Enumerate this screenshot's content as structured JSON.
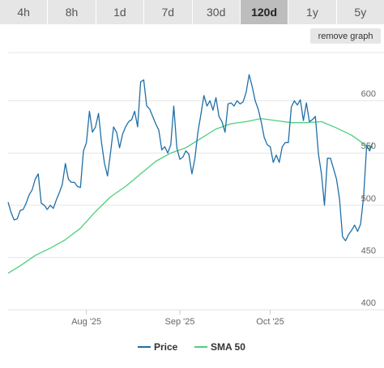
{
  "range_tabs": [
    {
      "label": "4h",
      "active": false
    },
    {
      "label": "8h",
      "active": false
    },
    {
      "label": "1d",
      "active": false
    },
    {
      "label": "7d",
      "active": false
    },
    {
      "label": "30d",
      "active": false
    },
    {
      "label": "120d",
      "active": true
    },
    {
      "label": "1y",
      "active": false
    },
    {
      "label": "5y",
      "active": false
    }
  ],
  "remove_graph_label": "remove graph",
  "colors": {
    "price": "#1f6fa8",
    "sma": "#4cd07d",
    "grid": "#e6e6e6",
    "tab_bg": "#e6e6e6",
    "tab_active_bg": "#bdbdbd"
  },
  "chart_data": {
    "type": "line",
    "x_start": "2025-07-06",
    "x_end": "2025-11-01",
    "xticks": [
      {
        "date": "2025-08-01",
        "label": "Aug '25"
      },
      {
        "date": "2025-09-01",
        "label": "Sep '25"
      },
      {
        "date": "2025-10-01",
        "label": "Oct '25"
      }
    ],
    "ylim": [
      400,
      650
    ],
    "yticks": [
      400,
      450,
      500,
      550,
      600
    ],
    "grid": true,
    "legend_position": "bottom-center",
    "series": [
      {
        "name": "Price",
        "color": "#1f6fa8",
        "points": [
          [
            "2025-07-06",
            503
          ],
          [
            "2025-07-07",
            493
          ],
          [
            "2025-07-08",
            486
          ],
          [
            "2025-07-09",
            487
          ],
          [
            "2025-07-10",
            495
          ],
          [
            "2025-07-11",
            496
          ],
          [
            "2025-07-12",
            502
          ],
          [
            "2025-07-13",
            510
          ],
          [
            "2025-07-14",
            515
          ],
          [
            "2025-07-15",
            525
          ],
          [
            "2025-07-16",
            530
          ],
          [
            "2025-07-17",
            502
          ],
          [
            "2025-07-18",
            500
          ],
          [
            "2025-07-19",
            496
          ],
          [
            "2025-07-20",
            500
          ],
          [
            "2025-07-21",
            497
          ],
          [
            "2025-07-22",
            505
          ],
          [
            "2025-07-23",
            512
          ],
          [
            "2025-07-24",
            520
          ],
          [
            "2025-07-25",
            540
          ],
          [
            "2025-07-26",
            525
          ],
          [
            "2025-07-27",
            522
          ],
          [
            "2025-07-28",
            522
          ],
          [
            "2025-07-29",
            518
          ],
          [
            "2025-07-30",
            517
          ],
          [
            "2025-07-31",
            552
          ],
          [
            "2025-08-01",
            560
          ],
          [
            "2025-08-02",
            590
          ],
          [
            "2025-08-03",
            570
          ],
          [
            "2025-08-04",
            575
          ],
          [
            "2025-08-05",
            588
          ],
          [
            "2025-08-06",
            560
          ],
          [
            "2025-08-07",
            540
          ],
          [
            "2025-08-08",
            528
          ],
          [
            "2025-08-09",
            550
          ],
          [
            "2025-08-10",
            575
          ],
          [
            "2025-08-11",
            570
          ],
          [
            "2025-08-12",
            555
          ],
          [
            "2025-08-13",
            568
          ],
          [
            "2025-08-14",
            575
          ],
          [
            "2025-08-15",
            580
          ],
          [
            "2025-08-16",
            582
          ],
          [
            "2025-08-17",
            590
          ],
          [
            "2025-08-18",
            575
          ],
          [
            "2025-08-19",
            618
          ],
          [
            "2025-08-20",
            620
          ],
          [
            "2025-08-21",
            595
          ],
          [
            "2025-08-22",
            592
          ],
          [
            "2025-08-23",
            585
          ],
          [
            "2025-08-24",
            578
          ],
          [
            "2025-08-25",
            572
          ],
          [
            "2025-08-26",
            553
          ],
          [
            "2025-08-27",
            556
          ],
          [
            "2025-08-28",
            550
          ],
          [
            "2025-08-29",
            558
          ],
          [
            "2025-08-30",
            595
          ],
          [
            "2025-08-31",
            555
          ],
          [
            "2025-09-01",
            544
          ],
          [
            "2025-09-02",
            546
          ],
          [
            "2025-09-03",
            552
          ],
          [
            "2025-09-04",
            549
          ],
          [
            "2025-09-05",
            530
          ],
          [
            "2025-09-06",
            545
          ],
          [
            "2025-09-07",
            570
          ],
          [
            "2025-09-08",
            587
          ],
          [
            "2025-09-09",
            605
          ],
          [
            "2025-09-10",
            595
          ],
          [
            "2025-09-11",
            600
          ],
          [
            "2025-09-12",
            591
          ],
          [
            "2025-09-13",
            603
          ],
          [
            "2025-09-14",
            585
          ],
          [
            "2025-09-15",
            580
          ],
          [
            "2025-09-16",
            570
          ],
          [
            "2025-09-17",
            597
          ],
          [
            "2025-09-18",
            598
          ],
          [
            "2025-09-19",
            595
          ],
          [
            "2025-09-20",
            600
          ],
          [
            "2025-09-21",
            597
          ],
          [
            "2025-09-22",
            599
          ],
          [
            "2025-09-23",
            608
          ],
          [
            "2025-09-24",
            625
          ],
          [
            "2025-09-25",
            614
          ],
          [
            "2025-09-26",
            600
          ],
          [
            "2025-09-27",
            592
          ],
          [
            "2025-09-28",
            580
          ],
          [
            "2025-09-29",
            565
          ],
          [
            "2025-09-30",
            558
          ],
          [
            "2025-10-01",
            556
          ],
          [
            "2025-10-02",
            541
          ],
          [
            "2025-10-03",
            548
          ],
          [
            "2025-10-04",
            541
          ],
          [
            "2025-10-05",
            556
          ],
          [
            "2025-10-06",
            560
          ],
          [
            "2025-10-07",
            560
          ],
          [
            "2025-10-08",
            594
          ],
          [
            "2025-10-09",
            600
          ],
          [
            "2025-10-10",
            596
          ],
          [
            "2025-10-11",
            601
          ],
          [
            "2025-10-12",
            581
          ],
          [
            "2025-10-13",
            598
          ],
          [
            "2025-10-14",
            580
          ],
          [
            "2025-10-15",
            582
          ],
          [
            "2025-10-16",
            585
          ],
          [
            "2025-10-17",
            549
          ],
          [
            "2025-10-18",
            530
          ],
          [
            "2025-10-19",
            500
          ],
          [
            "2025-10-20",
            545
          ],
          [
            "2025-10-21",
            545
          ],
          [
            "2025-10-22",
            535
          ],
          [
            "2025-10-23",
            525
          ],
          [
            "2025-10-24",
            506
          ],
          [
            "2025-10-25",
            470
          ],
          [
            "2025-10-26",
            466
          ],
          [
            "2025-10-27",
            472
          ],
          [
            "2025-10-28",
            476
          ],
          [
            "2025-10-29",
            481
          ],
          [
            "2025-10-30",
            475
          ],
          [
            "2025-10-31",
            482
          ],
          [
            "2025-11-01",
            508
          ],
          [
            "2025-11-02",
            557
          ],
          [
            "2025-11-03",
            552
          ],
          [
            "2025-11-04",
            560
          ]
        ]
      },
      {
        "name": "SMA 50",
        "color": "#4cd07d",
        "points": [
          [
            "2025-07-06",
            435
          ],
          [
            "2025-07-10",
            442
          ],
          [
            "2025-07-15",
            452
          ],
          [
            "2025-07-20",
            459
          ],
          [
            "2025-07-25",
            467
          ],
          [
            "2025-07-30",
            478
          ],
          [
            "2025-08-04",
            494
          ],
          [
            "2025-08-09",
            508
          ],
          [
            "2025-08-14",
            518
          ],
          [
            "2025-08-19",
            530
          ],
          [
            "2025-08-24",
            542
          ],
          [
            "2025-08-29",
            550
          ],
          [
            "2025-09-03",
            555
          ],
          [
            "2025-09-08",
            564
          ],
          [
            "2025-09-13",
            573
          ],
          [
            "2025-09-18",
            578
          ],
          [
            "2025-09-23",
            580
          ],
          [
            "2025-09-28",
            583
          ],
          [
            "2025-10-03",
            581
          ],
          [
            "2025-10-08",
            579
          ],
          [
            "2025-10-13",
            579
          ],
          [
            "2025-10-18",
            580
          ],
          [
            "2025-10-23",
            574
          ],
          [
            "2025-10-28",
            567
          ],
          [
            "2025-11-02",
            557
          ],
          [
            "2025-11-04",
            556
          ]
        ]
      }
    ]
  }
}
